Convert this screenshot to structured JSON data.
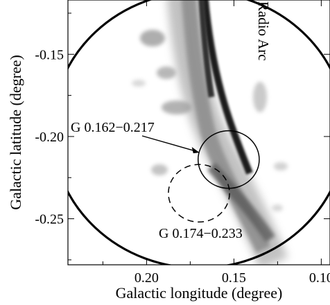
{
  "chart_data": {
    "type": "heatmap",
    "xlabel": "Galactic longitude (degree)",
    "ylabel": "Galactic latitude (degree)",
    "xlim": [
      0.245,
      0.095
    ],
    "ylim": [
      -0.278,
      -0.117
    ],
    "x_ticks": [
      0.2,
      0.15,
      0.1
    ],
    "y_ticks": [
      -0.15,
      -0.2,
      -0.25
    ],
    "x_tick_labels": [
      "0.20",
      "0.15",
      "0.10"
    ],
    "y_tick_labels": [
      "-0.15",
      "-0.20",
      "-0.25"
    ],
    "field_circle": {
      "center": [
        0.17,
        -0.196
      ],
      "radius": 0.084
    },
    "regions": [
      {
        "label": "G 0.162−0.217",
        "center": [
          0.153,
          -0.214
        ],
        "radius": 0.0175,
        "style": "solid"
      },
      {
        "label": "G 0.174−0.233",
        "center": [
          0.17,
          -0.2345
        ],
        "radius": 0.0175,
        "style": "dashed"
      }
    ],
    "annotations": [
      {
        "text": "Radio Arc",
        "x": 0.135,
        "y": -0.165
      },
      {
        "text": "G 0.162−0.217",
        "x": 0.205,
        "y": -0.193
      },
      {
        "text": "G 0.174−0.233",
        "x": 0.17,
        "y": -0.265
      }
    ],
    "grid": false,
    "colormap": "gray_r"
  }
}
